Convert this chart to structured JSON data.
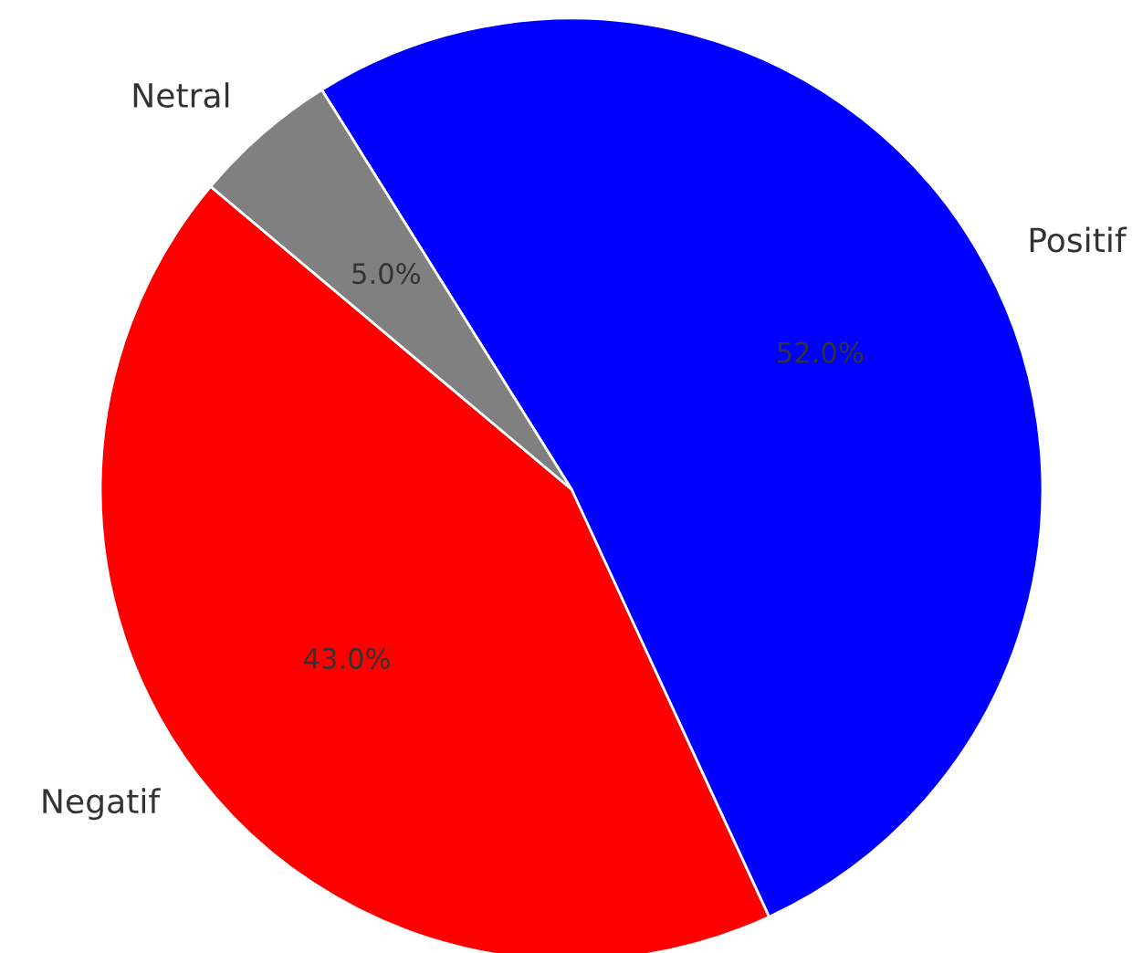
{
  "chart_data": {
    "type": "pie",
    "categories": [
      "Positif",
      "Negatif",
      "Netral"
    ],
    "values": [
      52,
      43,
      5
    ],
    "value_labels": [
      "52.0%",
      "43.0%",
      "5.0%"
    ],
    "colors": [
      "#0000ff",
      "#ff0000",
      "#808080"
    ]
  }
}
